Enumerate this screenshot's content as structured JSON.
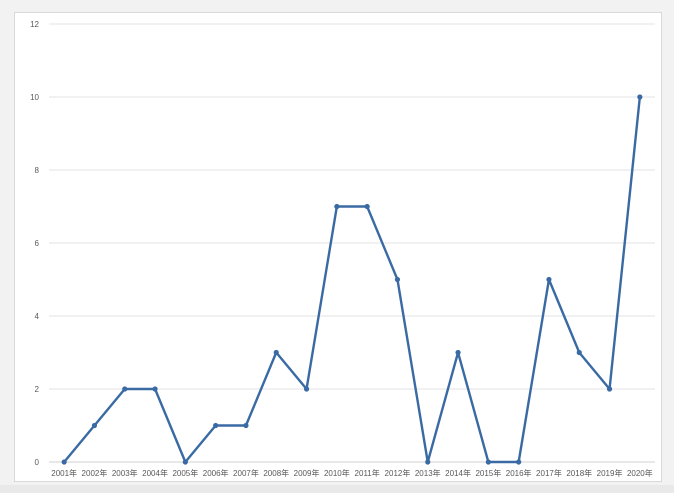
{
  "chart_data": {
    "type": "line",
    "title": "",
    "xlabel": "",
    "ylabel": "",
    "categories": [
      "2001年",
      "2002年",
      "2003年",
      "2004年",
      "2005年",
      "2006年",
      "2007年",
      "2008年",
      "2009年",
      "2010年",
      "2011年",
      "2012年",
      "2013年",
      "2014年",
      "2015年",
      "2016年",
      "2017年",
      "2018年",
      "2019年",
      "2020年"
    ],
    "series": [
      {
        "values": [
          0,
          1,
          2,
          2,
          0,
          1,
          1,
          3,
          2,
          7,
          7,
          5,
          0,
          3,
          0,
          0,
          5,
          3,
          2,
          10
        ],
        "color": "#3a6aa3"
      }
    ],
    "ylim": [
      0,
      12
    ],
    "yticks": [
      "0",
      "2",
      "4",
      "6",
      "8",
      "10",
      "12"
    ],
    "grid": true,
    "legend": "none"
  }
}
